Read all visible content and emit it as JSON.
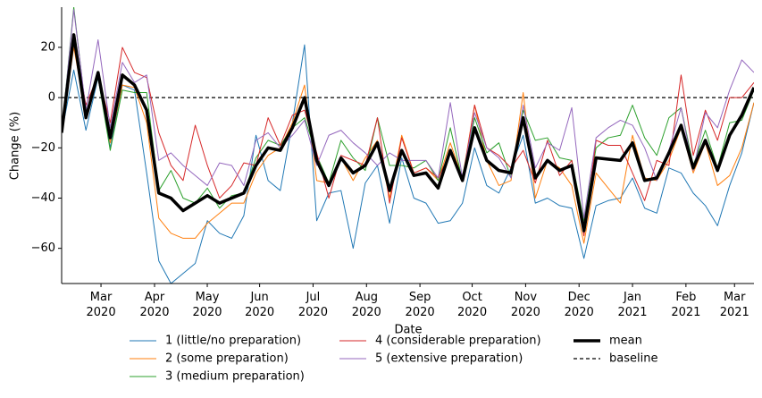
{
  "chart_data": {
    "type": "line",
    "xlabel": "Date",
    "ylabel": "Change (%)",
    "x": [
      0,
      1,
      2,
      3,
      4,
      5,
      6,
      7,
      8,
      9,
      10,
      11,
      12,
      13,
      14,
      15,
      16,
      17,
      18,
      19,
      20,
      21,
      22,
      23,
      24,
      25,
      26,
      27,
      28,
      29,
      30,
      31,
      32,
      33,
      34,
      35,
      36,
      37,
      38,
      39,
      40,
      41,
      42,
      43,
      44,
      45,
      46,
      47,
      48,
      49,
      50,
      51,
      52,
      53,
      54,
      55,
      56,
      57
    ],
    "xlim": [
      0,
      57
    ],
    "xticks": [
      {
        "value": 3.24,
        "label": "Mar\n2020"
      },
      {
        "value": 7.65,
        "label": "Apr\n2020"
      },
      {
        "value": 11.99,
        "label": "May\n2020"
      },
      {
        "value": 16.3,
        "label": "Jun\n2020"
      },
      {
        "value": 20.7,
        "label": "Jul\n2020"
      },
      {
        "value": 25.1,
        "label": "Aug\n2020"
      },
      {
        "value": 29.5,
        "label": "Sep\n2020"
      },
      {
        "value": 33.8,
        "label": "Oct\n2020"
      },
      {
        "value": 38.2,
        "label": "Nov\n2020"
      },
      {
        "value": 42.6,
        "label": "Dec\n2020"
      },
      {
        "value": 47.0,
        "label": "Jan\n2021"
      },
      {
        "value": 51.4,
        "label": "Feb\n2021"
      },
      {
        "value": 55.4,
        "label": "Mar\n2021"
      }
    ],
    "ylim": [
      -74,
      36
    ],
    "yticks": [
      {
        "value": -60,
        "label": "−60"
      },
      {
        "value": -40,
        "label": "−40"
      },
      {
        "value": -20,
        "label": "−20"
      },
      0,
      20
    ],
    "series": [
      {
        "name": "1 (little/no preparation)",
        "color": "#1f77b4",
        "width": 1,
        "values": [
          -14,
          11,
          -13,
          8,
          -20,
          5,
          3,
          -30,
          -65,
          -74,
          -70,
          -66,
          -49,
          -54,
          -56,
          -47,
          -15,
          -33,
          -37,
          -10,
          21,
          -49,
          -38,
          -37,
          -60,
          -34,
          -27,
          -50,
          -24,
          -40,
          -42,
          -50,
          -49,
          -42,
          -20,
          -35,
          -38,
          -28,
          -15,
          -42,
          -40,
          -43,
          -44,
          -64,
          -43,
          -41,
          -40,
          -32,
          -44,
          -46,
          -28,
          -30,
          -38,
          -43,
          -51,
          -35,
          -22,
          -2
        ]
      },
      {
        "name": "2 (some preparation)",
        "color": "#ff7f0e",
        "width": 1,
        "values": [
          -14,
          20,
          -7,
          10,
          -18,
          5,
          4,
          -10,
          -48,
          -54,
          -56,
          -56,
          -50,
          -46,
          -42,
          -42,
          -30,
          -23,
          -20,
          -10,
          5,
          -33,
          -34,
          -24,
          -33,
          -24,
          -17,
          -40,
          -15,
          -30,
          -28,
          -33,
          -18,
          -32,
          -3,
          -25,
          -35,
          -33,
          2,
          -40,
          -25,
          -28,
          -35,
          -58,
          -30,
          -36,
          -42,
          -15,
          -32,
          -33,
          -25,
          -12,
          -30,
          -18,
          -35,
          -31,
          -20,
          -2
        ]
      },
      {
        "name": "3 (medium preparation)",
        "color": "#2ca02c",
        "width": 1,
        "values": [
          -14,
          36,
          -6,
          8,
          -21,
          3,
          2,
          2,
          -37,
          -29,
          -40,
          -42,
          -36,
          -44,
          -39,
          -38,
          -24,
          -17,
          -19,
          -12,
          -8,
          -23,
          -34,
          -17,
          -24,
          -29,
          -8,
          -27,
          -27,
          -28,
          -25,
          -33,
          -12,
          -33,
          -8,
          -22,
          -18,
          -32,
          -5,
          -17,
          -16,
          -24,
          -25,
          -49,
          -20,
          -16,
          -15,
          -3,
          -16,
          -23,
          -8,
          -4,
          -27,
          -13,
          -28,
          -10,
          -9,
          3
        ]
      },
      {
        "name": "4 (considerable preparation)",
        "color": "#d62728",
        "width": 1,
        "values": [
          -14,
          25,
          -3,
          9,
          -10,
          20,
          10,
          8,
          -14,
          -27,
          -33,
          -11,
          -27,
          -40,
          -35,
          -26,
          -27,
          -8,
          -19,
          -7,
          -5,
          -22,
          -40,
          -23,
          -25,
          -27,
          -8,
          -42,
          -16,
          -30,
          -28,
          -32,
          -22,
          -33,
          -3,
          -20,
          -23,
          -28,
          -21,
          -34,
          -17,
          -31,
          -25,
          -55,
          -17,
          -19,
          -19,
          -30,
          -41,
          -25,
          -27,
          9,
          -23,
          -5,
          -17,
          0,
          0,
          6
        ]
      },
      {
        "name": "5 (extensive preparation)",
        "color": "#9467bd",
        "width": 1,
        "values": [
          -14,
          35,
          -5,
          23,
          -12,
          14,
          6,
          9,
          -25,
          -22,
          -27,
          -31,
          -35,
          -26,
          -27,
          -35,
          -17,
          -14,
          -20,
          -15,
          -9,
          -27,
          -15,
          -13,
          -18,
          -22,
          -27,
          -22,
          -25,
          -25,
          -25,
          -32,
          -2,
          -32,
          -6,
          -20,
          -24,
          -32,
          -3,
          -28,
          -18,
          -21,
          -4,
          -48,
          -16,
          -12,
          -9,
          -11,
          -20,
          -33,
          -21,
          -4,
          -29,
          -6,
          -12,
          3,
          15,
          10
        ]
      },
      {
        "name": "mean",
        "color": "#000000",
        "width": 3.5,
        "values": [
          -14,
          25,
          -8,
          10,
          -16,
          9,
          5,
          -5,
          -38,
          -40,
          -45,
          -42,
          -39,
          -42,
          -40,
          -38,
          -27,
          -20,
          -21,
          -12,
          0,
          -25,
          -35,
          -24,
          -30,
          -27,
          -18,
          -37,
          -21,
          -31,
          -30,
          -36,
          -21,
          -33,
          -12,
          -25,
          -29,
          -30,
          -8,
          -32,
          -25,
          -29,
          -27,
          -53,
          -24,
          -24.5,
          -25,
          -18,
          -33,
          -32,
          -22,
          -11,
          -28,
          -17,
          -29,
          -15,
          -7,
          4
        ]
      }
    ],
    "baseline": {
      "name": "baseline",
      "value": 0,
      "color": "#000000"
    }
  }
}
